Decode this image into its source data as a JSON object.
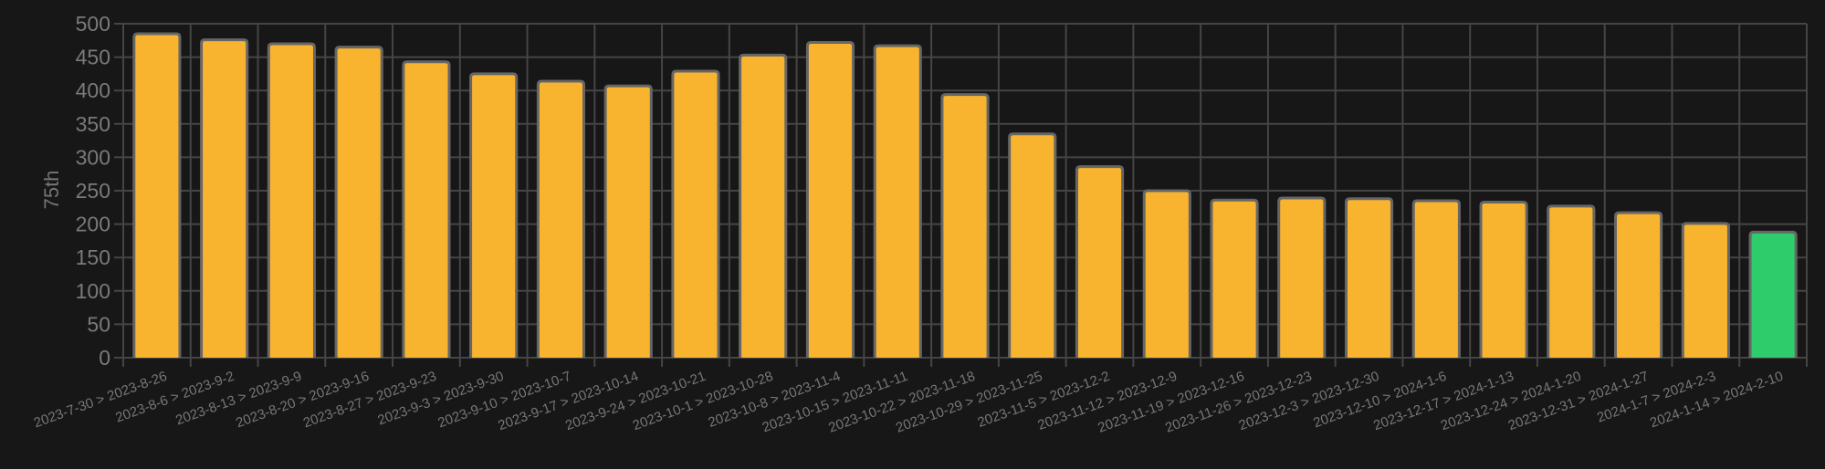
{
  "chart_data": {
    "type": "bar",
    "title": "",
    "xlabel": "",
    "ylabel": "75th",
    "ylim": [
      0,
      500
    ],
    "yticks": [
      0,
      50,
      100,
      150,
      200,
      250,
      300,
      350,
      400,
      450,
      500
    ],
    "grid": true,
    "legend": "none",
    "categories": [
      "2023-7-30 > 2023-8-26",
      "2023-8-6 > 2023-9-2",
      "2023-8-13 > 2023-9-9",
      "2023-8-20 > 2023-9-16",
      "2023-8-27 > 2023-9-23",
      "2023-9-3 > 2023-9-30",
      "2023-9-10 > 2023-10-7",
      "2023-9-17 > 2023-10-14",
      "2023-9-24 > 2023-10-21",
      "2023-10-1 > 2023-10-28",
      "2023-10-8 > 2023-11-4",
      "2023-10-15 > 2023-11-11",
      "2023-10-22 > 2023-11-18",
      "2023-10-29 > 2023-11-25",
      "2023-11-5 > 2023-12-2",
      "2023-11-12 > 2023-12-9",
      "2023-11-19 > 2023-12-16",
      "2023-11-26 > 2023-12-23",
      "2023-12-3 > 2023-12-30",
      "2023-12-10 > 2024-1-6",
      "2023-12-17 > 2024-1-13",
      "2023-12-24 > 2024-1-20",
      "2023-12-31 > 2024-1-27",
      "2024-1-7 > 2024-2-3",
      "2024-1-14 > 2024-2-10"
    ],
    "values": [
      485,
      476,
      470,
      465,
      443,
      425,
      414,
      407,
      429,
      453,
      472,
      467,
      394,
      335,
      286,
      250,
      236,
      239,
      238,
      235,
      233,
      227,
      217,
      201,
      188
    ],
    "colors": {
      "bar": "#f8b42e",
      "highlight": "#2ecc6a",
      "bar_border": "#666666",
      "background": "#171717",
      "grid": "#454545"
    },
    "highlight_index": 24
  }
}
